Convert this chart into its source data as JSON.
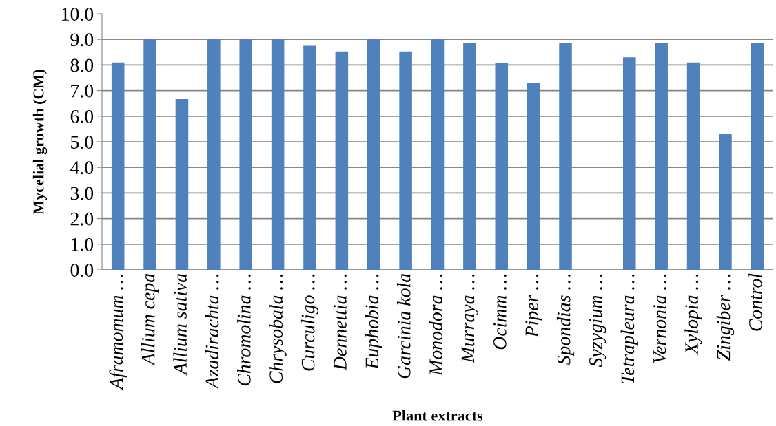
{
  "chart_data": {
    "type": "bar",
    "xlabel": "Plant extracts",
    "ylabel": "Mycelial growth (CM)",
    "categories": [
      "Aframomum …",
      "Allium cepa",
      "Allium sativa",
      "Azadirachta …",
      "Chromolina …",
      "Chrysobala …",
      "Curculigo …",
      "Dennettia …",
      "Euphobia …",
      "Garcinia kola",
      "Monodora …",
      "Murraya …",
      "Ocimm …",
      "Piper …",
      "Spondias …",
      "Syzygium …",
      "Tetrapleura …",
      "Vernonia …",
      "Xylopia …",
      "Zingiber …",
      "Control"
    ],
    "values": [
      8.1,
      9.0,
      6.67,
      9.0,
      9.0,
      9.0,
      8.75,
      8.53,
      9.0,
      8.53,
      9.0,
      8.87,
      8.07,
      7.3,
      8.87,
      0,
      8.3,
      8.87,
      8.1,
      5.3,
      8.87
    ],
    "color": "#4f81bd",
    "ylim": [
      0,
      10
    ],
    "yticks": [
      {
        "value": 0,
        "label": "0.0"
      },
      {
        "value": 1,
        "label": "1.0"
      },
      {
        "value": 2,
        "label": "2.0"
      },
      {
        "value": 3,
        "label": "3.0"
      },
      {
        "value": 4,
        "label": "4.0"
      },
      {
        "value": 5,
        "label": "5.0"
      },
      {
        "value": 6,
        "label": "6.0"
      },
      {
        "value": 7,
        "label": "7.0"
      },
      {
        "value": 8,
        "label": "8.0"
      },
      {
        "value": 9,
        "label": "9.0"
      },
      {
        "value": 10,
        "label": "10.0"
      }
    ],
    "grid": "y"
  }
}
